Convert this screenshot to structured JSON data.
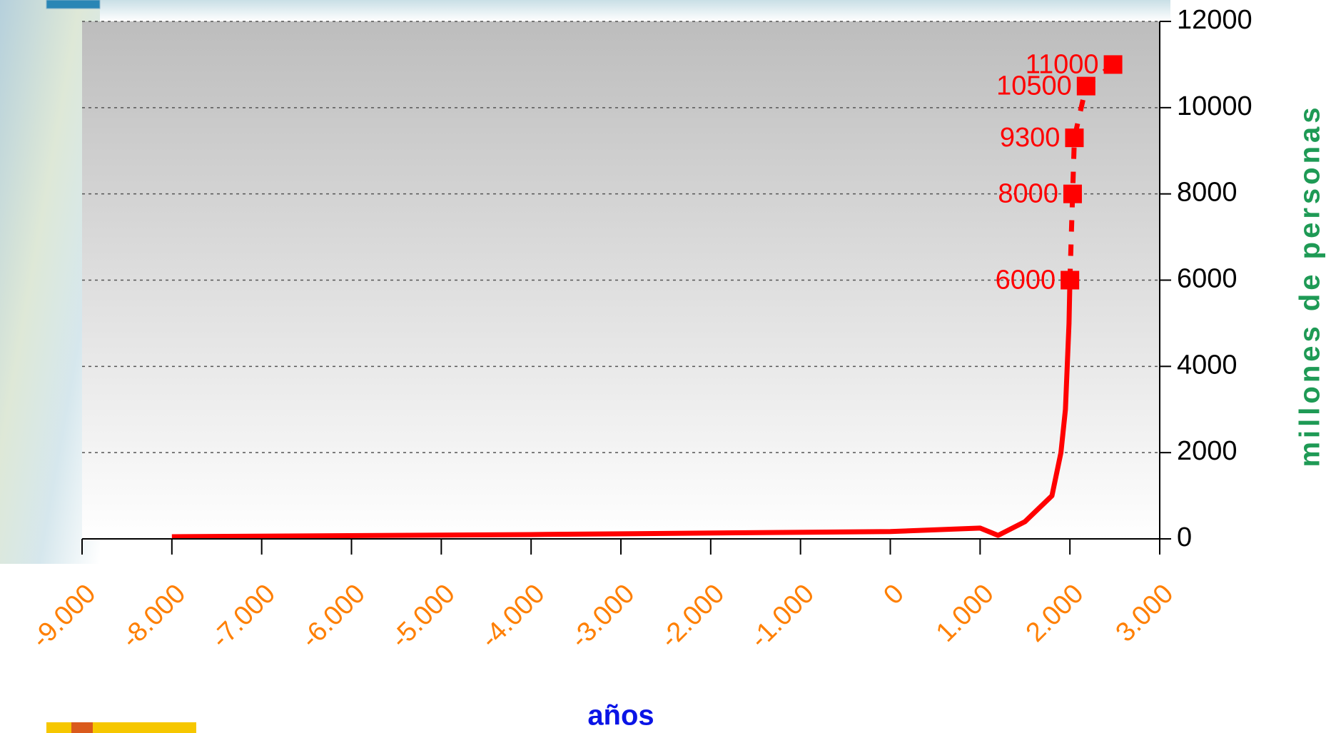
{
  "chart_data": {
    "type": "line",
    "x_label": "años",
    "y_label": "millones de personas",
    "xlim": [
      -9000,
      3000
    ],
    "xticks": [
      {
        "value": -9000,
        "label": "-9.000"
      },
      {
        "value": -8000,
        "label": "-8.000"
      },
      {
        "value": -7000,
        "label": "-7.000"
      },
      {
        "value": -6000,
        "label": "-6.000"
      },
      {
        "value": -5000,
        "label": "-5.000"
      },
      {
        "value": -4000,
        "label": "-4.000"
      },
      {
        "value": -3000,
        "label": "-3.000"
      },
      {
        "value": -2000,
        "label": "-2.000"
      },
      {
        "value": -1000,
        "label": "-1.000"
      },
      0,
      {
        "value": 1000,
        "label": "1.000"
      },
      {
        "value": 2000,
        "label": "2.000"
      },
      {
        "value": 3000,
        "label": "3.000"
      }
    ],
    "ylim": [
      0,
      12000
    ],
    "yticks": [
      0,
      2000,
      4000,
      6000,
      8000,
      10000,
      12000
    ],
    "y_axis_side": "right",
    "grid": true,
    "series": [
      {
        "color": "#ff0000",
        "line_style": "solid",
        "marker": "none",
        "x": [
          -8000,
          -4000,
          0,
          1000,
          1200,
          1500,
          1800,
          1900,
          1950,
          1990,
          2000
        ],
        "values": [
          50,
          100,
          170,
          250,
          80,
          400,
          1000,
          2000,
          3000,
          5000,
          6000
        ]
      },
      {
        "color": "#ff0000",
        "line_style": "dashed",
        "marker": "square",
        "data_labels": true,
        "x": [
          2000,
          2030,
          2050,
          2180,
          2480
        ],
        "values": [
          6000,
          8000,
          9300,
          10500,
          11000
        ]
      }
    ]
  }
}
